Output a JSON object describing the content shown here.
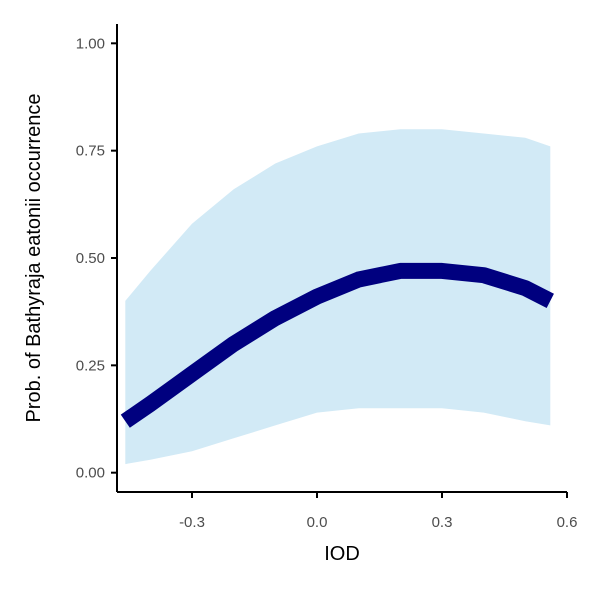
{
  "chart_data": {
    "type": "line",
    "xlabel": "IOD",
    "ylabel": "Prob. of  Bathyraja eatonii  occurrence",
    "xlim": [
      -0.48,
      0.6
    ],
    "ylim": [
      0.0,
      1.0
    ],
    "x_ticks": [
      -0.3,
      0.0,
      0.3,
      0.6
    ],
    "x_tick_labels": [
      "-0.3",
      "0.0",
      "0.3",
      "0.6"
    ],
    "y_ticks": [
      0.0,
      0.25,
      0.5,
      0.75,
      1.0
    ],
    "y_tick_labels": [
      "0.00",
      "0.25",
      "0.50",
      "0.75",
      "1.00"
    ],
    "grid": false,
    "x": [
      -0.46,
      -0.4,
      -0.3,
      -0.2,
      -0.1,
      0.0,
      0.1,
      0.2,
      0.3,
      0.4,
      0.5,
      0.56
    ],
    "series": [
      {
        "values": [
          0.12,
          0.16,
          0.23,
          0.3,
          0.36,
          0.41,
          0.45,
          0.47,
          0.47,
          0.46,
          0.43,
          0.4
        ],
        "lower": [
          0.02,
          0.03,
          0.05,
          0.08,
          0.11,
          0.14,
          0.15,
          0.15,
          0.15,
          0.14,
          0.12,
          0.11
        ],
        "upper": [
          0.4,
          0.47,
          0.58,
          0.66,
          0.72,
          0.76,
          0.79,
          0.8,
          0.8,
          0.79,
          0.78,
          0.76
        ],
        "line_color": "#00007f",
        "band_color": "#d2eaf6"
      }
    ]
  }
}
